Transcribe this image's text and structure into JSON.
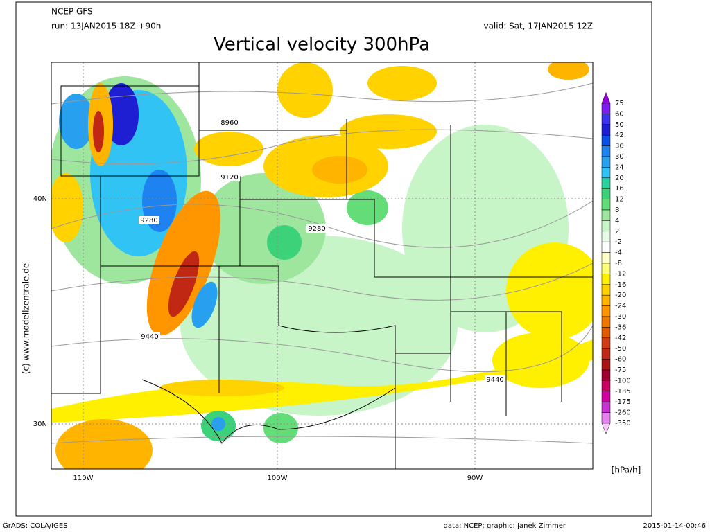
{
  "header": {
    "model": "NCEP GFS",
    "run": "run: 13JAN2015 18Z +90h",
    "valid": "valid: Sat, 17JAN2015 12Z",
    "title": "Vertical velocity 300hPa"
  },
  "map": {
    "lat_labels": [
      "40N",
      "30N"
    ],
    "lon_labels": [
      "110W",
      "100W",
      "90W"
    ],
    "contour_labels": [
      "8960",
      "9120",
      "9280",
      "9280",
      "9440",
      "9440"
    ],
    "watermark": "(c) www.modellzentrale.de"
  },
  "colorbar": {
    "labels": [
      75,
      60,
      50,
      42,
      36,
      30,
      24,
      20,
      16,
      12,
      8,
      4,
      2,
      -2,
      -4,
      -8,
      -12,
      -16,
      -20,
      -24,
      -30,
      -36,
      -42,
      -50,
      -60,
      -75,
      -100,
      -135,
      -175,
      -260,
      -350
    ],
    "colors": [
      "#9a00e6",
      "#7c1ef0",
      "#3c32f0",
      "#1e1ed2",
      "#0a50e6",
      "#1e82f0",
      "#28a0f0",
      "#32c3f5",
      "#2ad2a0",
      "#3cd27a",
      "#64dc78",
      "#9ee69e",
      "#c8f5c8",
      "#e6fae6",
      "#ffffff",
      "#ffffc8",
      "#ffff78",
      "#fff000",
      "#ffd200",
      "#ffb400",
      "#ff9600",
      "#f07800",
      "#e05a00",
      "#d23c14",
      "#c02814",
      "#aa1414",
      "#a00032",
      "#c80064",
      "#d200a0",
      "#c832d2",
      "#e682f0",
      "#fac8fa"
    ],
    "unit": "[hPa/h]"
  },
  "footer": {
    "left": "GrADS: COLA/IGES",
    "center": "data: NCEP; graphic: Janek Zimmer",
    "right": "2015-01-14-00:46"
  }
}
